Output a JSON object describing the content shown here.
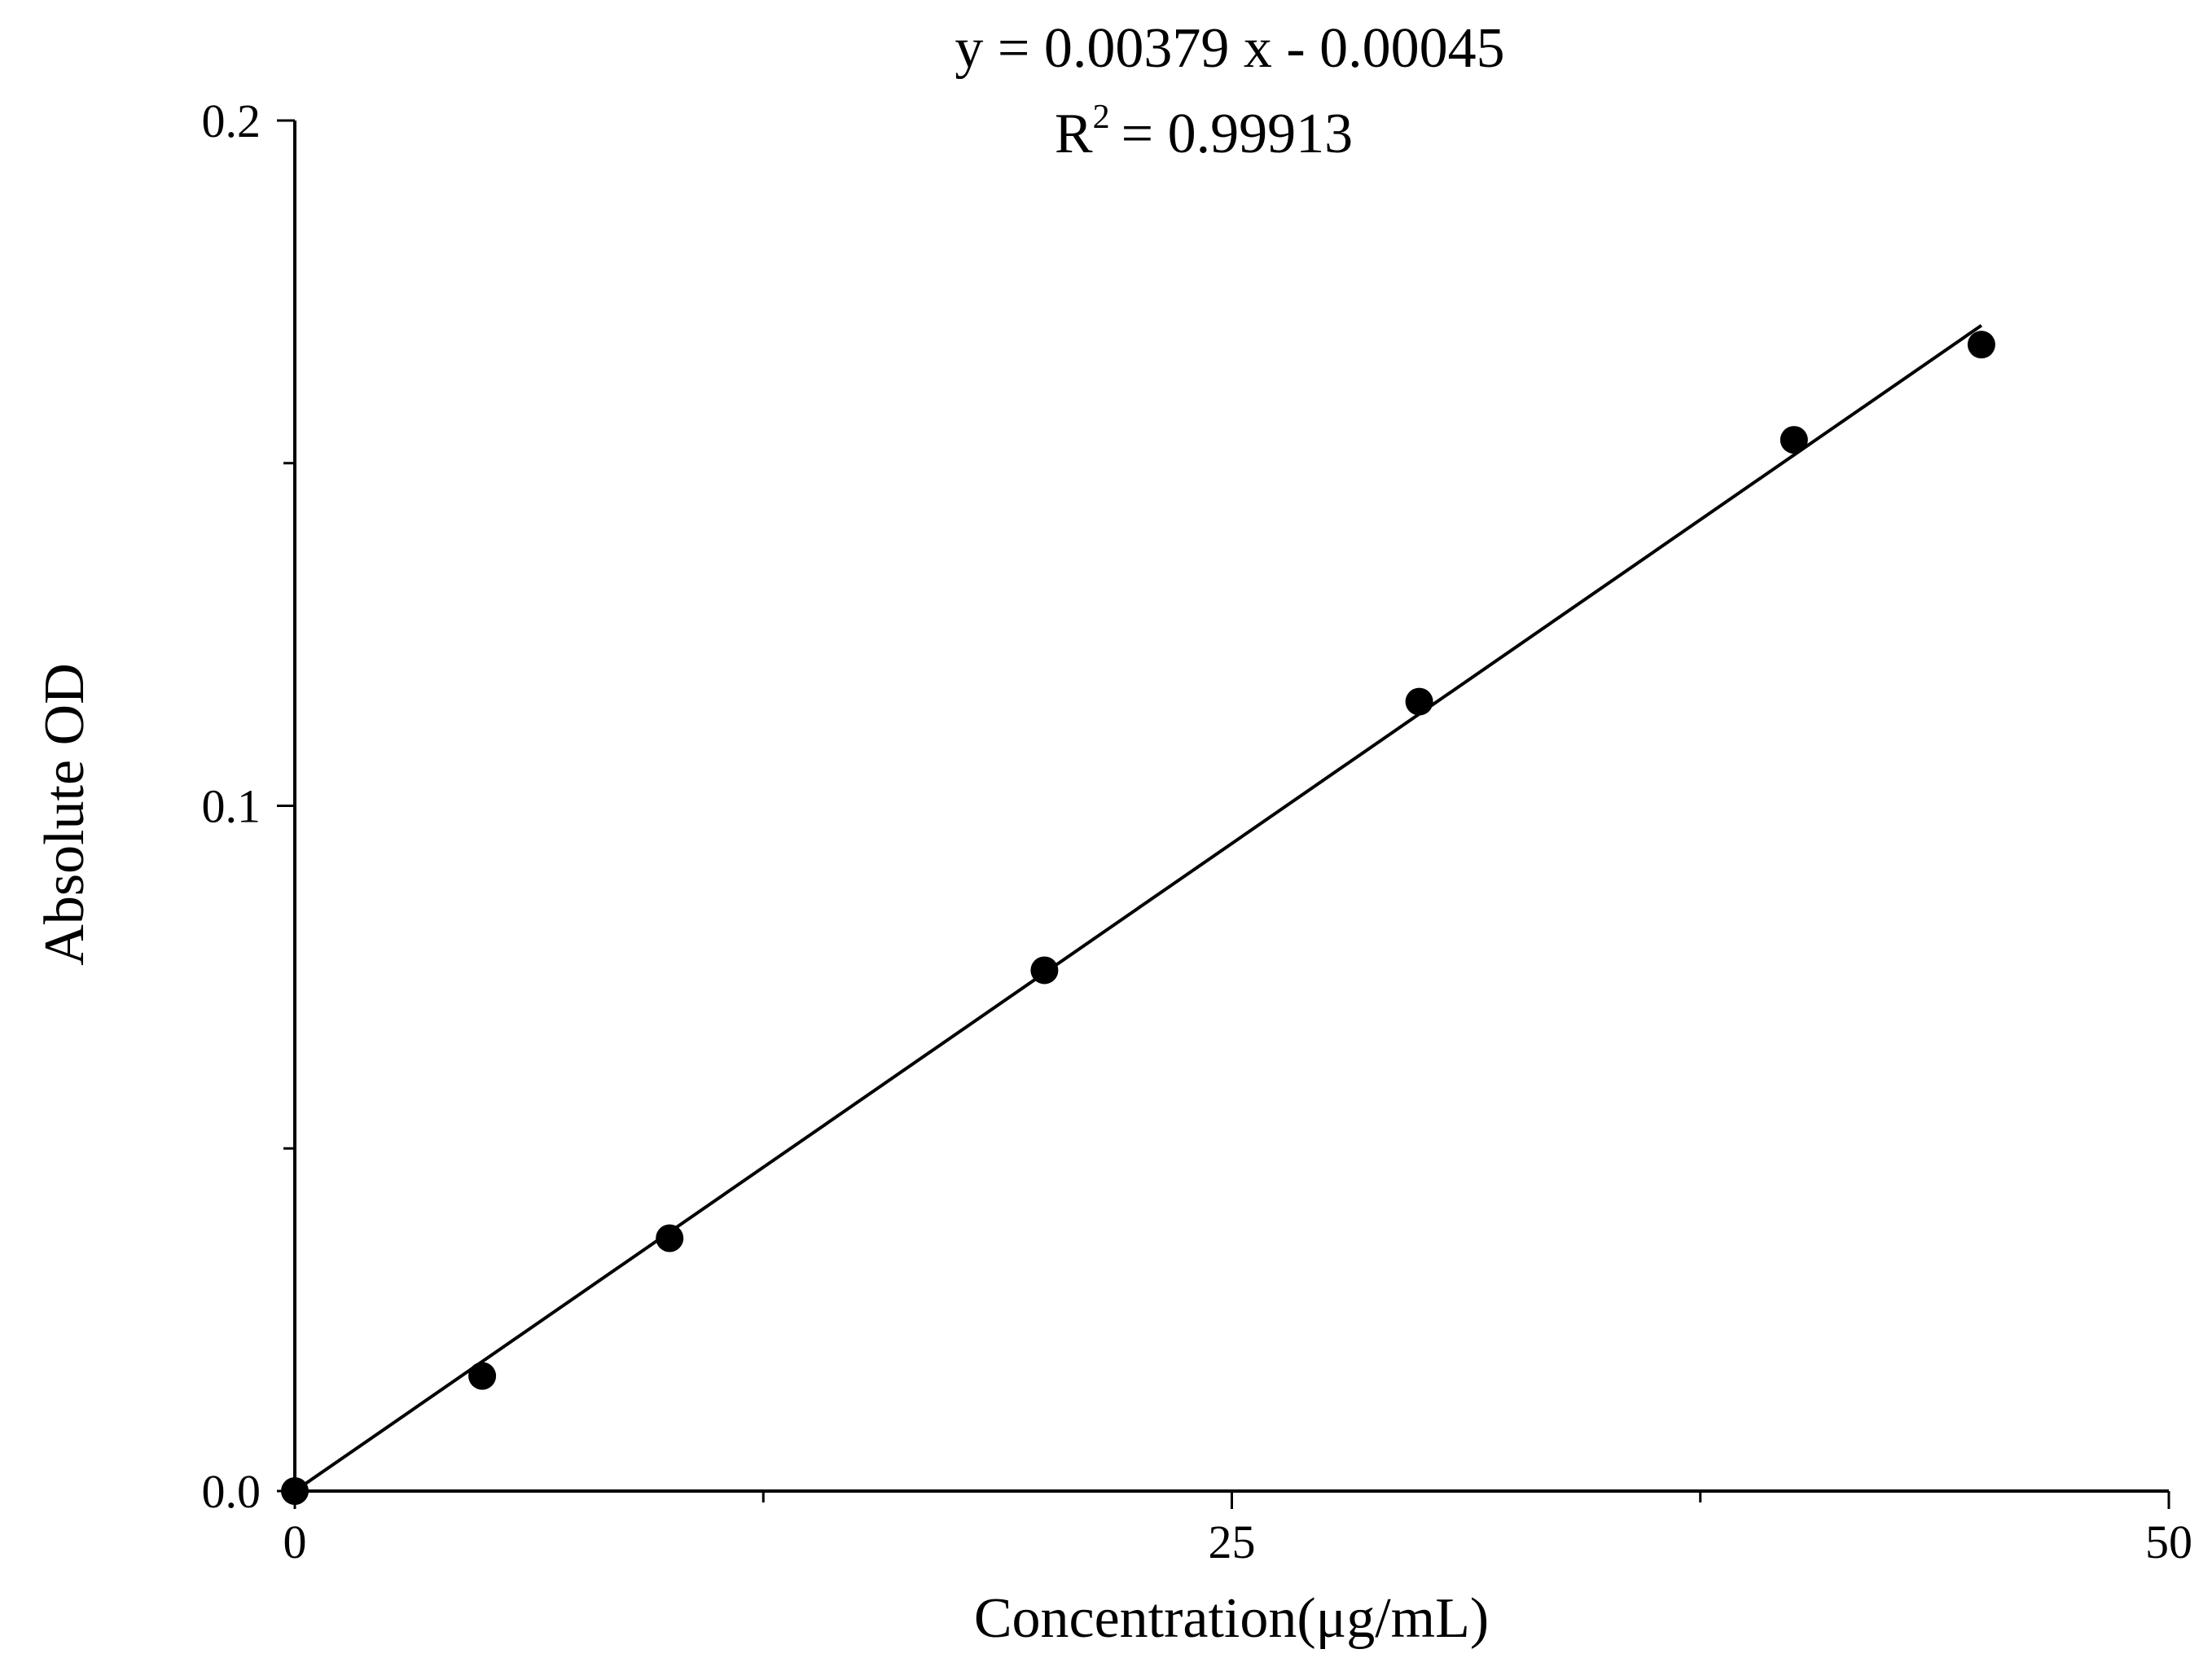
{
  "chart_data": {
    "type": "scatter",
    "equation": "y = 0.00379 x - 0.00045",
    "r2_prefix": "R",
    "r2_sup": "2",
    "r2_value": "= 0.99913",
    "xlabel": "Concentration(μg/mL)",
    "ylabel": "Absolute OD",
    "xlim": [
      0,
      50
    ],
    "ylim": [
      0,
      0.2
    ],
    "x_ticks": [
      {
        "value": 0,
        "label": "0"
      },
      {
        "value": 25,
        "label": "25"
      },
      {
        "value": 50,
        "label": "50"
      }
    ],
    "x_minor_ticks": [
      12.5,
      37.5
    ],
    "y_ticks": [
      {
        "value": 0,
        "label": "0.0"
      },
      {
        "value": 0.1,
        "label": "0.1"
      },
      {
        "value": 0.2,
        "label": "0.2"
      }
    ],
    "y_minor_ticks": [
      0.05,
      0.15
    ],
    "grid": false,
    "series": [
      {
        "points": [
          {
            "x": 0,
            "y": 0.0
          },
          {
            "x": 5,
            "y": 0.0168
          },
          {
            "x": 10,
            "y": 0.0369
          },
          {
            "x": 20,
            "y": 0.076
          },
          {
            "x": 30,
            "y": 0.1152
          },
          {
            "x": 40,
            "y": 0.1534
          },
          {
            "x": 45,
            "y": 0.1673
          }
        ]
      }
    ],
    "fit": {
      "slope": 0.00379,
      "intercept": -0.00045,
      "x_range": [
        0,
        45
      ]
    }
  }
}
